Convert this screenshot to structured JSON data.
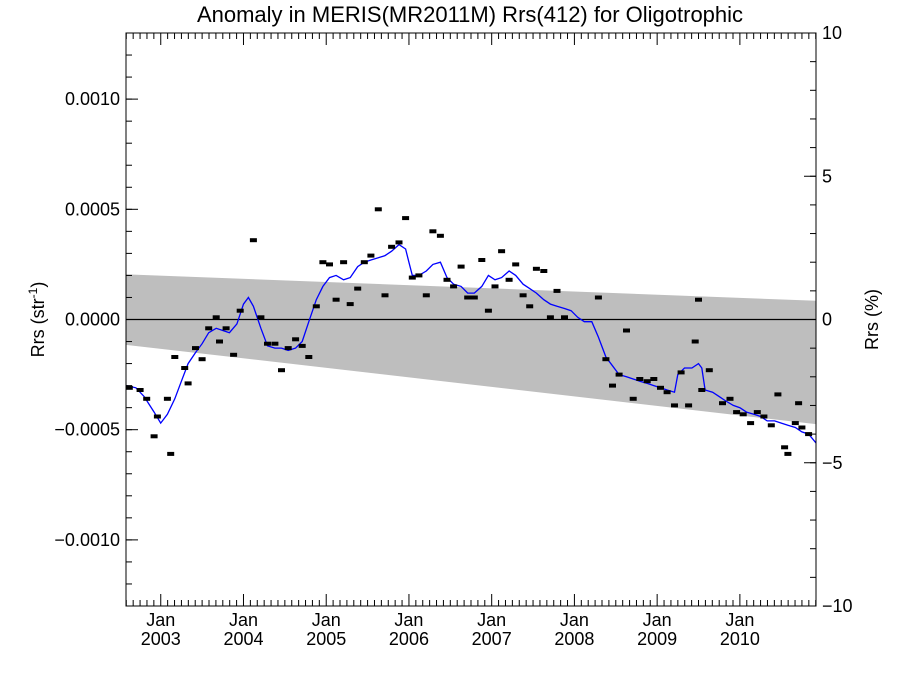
{
  "chart_data": {
    "type": "line",
    "title": "Anomaly in MERIS(MR2011M) Rrs(412) for Oligotrophic",
    "ylabel": "Rrs (str",
    "ylabel_superscript": "-1",
    "ylabel_suffix": ")",
    "y2label": "Rrs (%)",
    "xlim": [
      2002.58,
      2010.92
    ],
    "ylim": [
      -0.0013,
      0.0013
    ],
    "y2lim": [
      -10,
      10
    ],
    "yticks": [
      {
        "value": 0.001,
        "label": "0.0010"
      },
      {
        "value": 0.0005,
        "label": "0.0005"
      },
      {
        "value": 0.0,
        "label": "0.0000"
      },
      {
        "value": -0.0005,
        "label": "−0.0005"
      },
      {
        "value": -0.001,
        "label": "−0.0010"
      }
    ],
    "y2ticks": [
      {
        "value": 10,
        "label": "10"
      },
      {
        "value": 5,
        "label": "5"
      },
      {
        "value": 0,
        "label": "0"
      },
      {
        "value": -5,
        "label": "−5"
      },
      {
        "value": -10,
        "label": "−10"
      }
    ],
    "xticks": [
      {
        "value": 2003.0,
        "month": "Jan",
        "year": "2003"
      },
      {
        "value": 2004.0,
        "month": "Jan",
        "year": "2004"
      },
      {
        "value": 2005.0,
        "month": "Jan",
        "year": "2005"
      },
      {
        "value": 2006.0,
        "month": "Jan",
        "year": "2006"
      },
      {
        "value": 2007.0,
        "month": "Jan",
        "year": "2007"
      },
      {
        "value": 2008.0,
        "month": "Jan",
        "year": "2008"
      },
      {
        "value": 2009.0,
        "month": "Jan",
        "year": "2009"
      },
      {
        "value": 2010.0,
        "month": "Jan",
        "year": "2010"
      }
    ],
    "grid": false,
    "zero_line": true,
    "band": {
      "color": "#bebebe",
      "upper": [
        [
          2002.58,
          0.000205
        ],
        [
          2010.92,
          8.5e-05
        ]
      ],
      "lower": [
        [
          2002.58,
          -0.000115
        ],
        [
          2010.92,
          -0.000475
        ]
      ]
    },
    "series": [
      {
        "type": "scatter-dash",
        "color": "#000000",
        "points": [
          [
            2002.62,
            -0.00031
          ],
          [
            2002.75,
            -0.00032
          ],
          [
            2002.83,
            -0.00036
          ],
          [
            2002.92,
            -0.00053
          ],
          [
            2002.96,
            -0.00044
          ],
          [
            2003.08,
            -0.00036
          ],
          [
            2003.12,
            -0.00061
          ],
          [
            2003.17,
            -0.00017
          ],
          [
            2003.29,
            -0.00022
          ],
          [
            2003.33,
            -0.00029
          ],
          [
            2003.42,
            -0.00013
          ],
          [
            2003.5,
            -0.00018
          ],
          [
            2003.58,
            -4e-05
          ],
          [
            2003.67,
            1e-05
          ],
          [
            2003.71,
            -0.0001
          ],
          [
            2003.79,
            -4e-05
          ],
          [
            2003.88,
            -0.00016
          ],
          [
            2003.96,
            4e-05
          ],
          [
            2004.12,
            0.00036
          ],
          [
            2004.21,
            1e-05
          ],
          [
            2004.29,
            -0.00011
          ],
          [
            2004.38,
            -0.00011
          ],
          [
            2004.46,
            -0.00023
          ],
          [
            2004.54,
            -0.00013
          ],
          [
            2004.63,
            -9e-05
          ],
          [
            2004.71,
            -0.00012
          ],
          [
            2004.79,
            -0.00017
          ],
          [
            2004.88,
            6e-05
          ],
          [
            2004.96,
            0.00026
          ],
          [
            2005.04,
            0.00025
          ],
          [
            2005.12,
            9e-05
          ],
          [
            2005.21,
            0.00026
          ],
          [
            2005.29,
            7e-05
          ],
          [
            2005.38,
            0.00014
          ],
          [
            2005.46,
            0.00026
          ],
          [
            2005.54,
            0.00029
          ],
          [
            2005.63,
            0.0005
          ],
          [
            2005.71,
            0.00011
          ],
          [
            2005.79,
            0.00033
          ],
          [
            2005.88,
            0.00035
          ],
          [
            2005.96,
            0.00046
          ],
          [
            2006.04,
            0.00019
          ],
          [
            2006.12,
            0.0002
          ],
          [
            2006.21,
            0.00011
          ],
          [
            2006.29,
            0.0004
          ],
          [
            2006.38,
            0.00038
          ],
          [
            2006.46,
            0.00018
          ],
          [
            2006.54,
            0.00015
          ],
          [
            2006.63,
            0.00024
          ],
          [
            2006.71,
            0.0001
          ],
          [
            2006.79,
            0.0001
          ],
          [
            2006.88,
            0.00027
          ],
          [
            2006.96,
            4e-05
          ],
          [
            2007.04,
            0.00015
          ],
          [
            2007.12,
            0.00031
          ],
          [
            2007.21,
            0.00018
          ],
          [
            2007.29,
            0.00025
          ],
          [
            2007.38,
            0.00011
          ],
          [
            2007.46,
            6e-05
          ],
          [
            2007.54,
            0.00023
          ],
          [
            2007.63,
            0.00022
          ],
          [
            2007.71,
            1e-05
          ],
          [
            2007.79,
            0.00013
          ],
          [
            2007.88,
            1e-05
          ],
          [
            2008.29,
            0.0001
          ],
          [
            2008.38,
            -0.00018
          ],
          [
            2008.46,
            -0.0003
          ],
          [
            2008.54,
            -0.00025
          ],
          [
            2008.63,
            -5e-05
          ],
          [
            2008.71,
            -0.00036
          ],
          [
            2008.79,
            -0.00027
          ],
          [
            2008.88,
            -0.00028
          ],
          [
            2008.96,
            -0.00027
          ],
          [
            2009.04,
            -0.00031
          ],
          [
            2009.12,
            -0.00033
          ],
          [
            2009.21,
            -0.00039
          ],
          [
            2009.29,
            -0.00024
          ],
          [
            2009.38,
            -0.00039
          ],
          [
            2009.46,
            -0.0001
          ],
          [
            2009.5,
            9e-05
          ],
          [
            2009.54,
            -0.00032
          ],
          [
            2009.63,
            -0.00023
          ],
          [
            2009.79,
            -0.00038
          ],
          [
            2009.88,
            -0.00036
          ],
          [
            2009.96,
            -0.00042
          ],
          [
            2010.04,
            -0.00043
          ],
          [
            2010.13,
            -0.00047
          ],
          [
            2010.21,
            -0.00042
          ],
          [
            2010.29,
            -0.00044
          ],
          [
            2010.38,
            -0.00048
          ],
          [
            2010.46,
            -0.00034
          ],
          [
            2010.54,
            -0.00058
          ],
          [
            2010.58,
            -0.00061
          ],
          [
            2010.67,
            -0.00047
          ],
          [
            2010.71,
            -0.00038
          ],
          [
            2010.75,
            -0.00049
          ],
          [
            2010.83,
            -0.00052
          ]
        ]
      },
      {
        "type": "line",
        "color": "#0000ff",
        "points": [
          [
            2002.58,
            -0.0003
          ],
          [
            2002.7,
            -0.00031
          ],
          [
            2002.8,
            -0.00035
          ],
          [
            2002.92,
            -0.00042
          ],
          [
            2003.0,
            -0.00047
          ],
          [
            2003.08,
            -0.00043
          ],
          [
            2003.17,
            -0.00036
          ],
          [
            2003.25,
            -0.00028
          ],
          [
            2003.33,
            -0.0002
          ],
          [
            2003.42,
            -0.00015
          ],
          [
            2003.5,
            -0.00011
          ],
          [
            2003.58,
            -6e-05
          ],
          [
            2003.67,
            -4e-05
          ],
          [
            2003.75,
            -5e-05
          ],
          [
            2003.83,
            -6e-05
          ],
          [
            2003.92,
            -2e-05
          ],
          [
            2004.0,
            7e-05
          ],
          [
            2004.06,
            0.0001
          ],
          [
            2004.12,
            6e-05
          ],
          [
            2004.21,
            -4e-05
          ],
          [
            2004.29,
            -0.00012
          ],
          [
            2004.38,
            -0.00013
          ],
          [
            2004.46,
            -0.00013
          ],
          [
            2004.54,
            -0.00014
          ],
          [
            2004.63,
            -0.00013
          ],
          [
            2004.71,
            -0.0001
          ],
          [
            2004.79,
            -1e-05
          ],
          [
            2004.88,
            9e-05
          ],
          [
            2004.96,
            0.00015
          ],
          [
            2005.04,
            0.00019
          ],
          [
            2005.12,
            0.0002
          ],
          [
            2005.21,
            0.00018
          ],
          [
            2005.29,
            0.00019
          ],
          [
            2005.38,
            0.00024
          ],
          [
            2005.46,
            0.00026
          ],
          [
            2005.54,
            0.00027
          ],
          [
            2005.63,
            0.00028
          ],
          [
            2005.71,
            0.00029
          ],
          [
            2005.79,
            0.00031
          ],
          [
            2005.88,
            0.00034
          ],
          [
            2005.96,
            0.00032
          ],
          [
            2006.0,
            0.00026
          ],
          [
            2006.04,
            0.0002
          ],
          [
            2006.12,
            0.0002
          ],
          [
            2006.21,
            0.00022
          ],
          [
            2006.29,
            0.00025
          ],
          [
            2006.38,
            0.00026
          ],
          [
            2006.46,
            0.00019
          ],
          [
            2006.54,
            0.00016
          ],
          [
            2006.63,
            0.00015
          ],
          [
            2006.71,
            0.00012
          ],
          [
            2006.79,
            0.00012
          ],
          [
            2006.88,
            0.00015
          ],
          [
            2006.96,
            0.0002
          ],
          [
            2007.04,
            0.00018
          ],
          [
            2007.12,
            0.00019
          ],
          [
            2007.21,
            0.00022
          ],
          [
            2007.29,
            0.0002
          ],
          [
            2007.38,
            0.00016
          ],
          [
            2007.46,
            0.00014
          ],
          [
            2007.54,
            0.00012
          ],
          [
            2007.63,
            9e-05
          ],
          [
            2007.71,
            7e-05
          ],
          [
            2007.79,
            6e-05
          ],
          [
            2007.88,
            5e-05
          ],
          [
            2007.96,
            4e-05
          ],
          [
            2008.04,
            1e-05
          ],
          [
            2008.12,
            -1e-05
          ],
          [
            2008.21,
            -1e-05
          ],
          [
            2008.29,
            -8e-05
          ],
          [
            2008.38,
            -0.00017
          ],
          [
            2008.46,
            -0.00021
          ],
          [
            2008.54,
            -0.00025
          ],
          [
            2008.63,
            -0.00026
          ],
          [
            2008.71,
            -0.00027
          ],
          [
            2008.79,
            -0.00028
          ],
          [
            2008.88,
            -0.00029
          ],
          [
            2008.96,
            -0.0003
          ],
          [
            2009.04,
            -0.00031
          ],
          [
            2009.12,
            -0.00032
          ],
          [
            2009.21,
            -0.00033
          ],
          [
            2009.25,
            -0.00025
          ],
          [
            2009.33,
            -0.00022
          ],
          [
            2009.42,
            -0.00022
          ],
          [
            2009.5,
            -0.0002
          ],
          [
            2009.54,
            -0.00022
          ],
          [
            2009.58,
            -0.00032
          ],
          [
            2009.67,
            -0.00033
          ],
          [
            2009.75,
            -0.00035
          ],
          [
            2009.83,
            -0.00037
          ],
          [
            2009.92,
            -0.00039
          ],
          [
            2010.0,
            -0.0004
          ],
          [
            2010.08,
            -0.00042
          ],
          [
            2010.17,
            -0.00043
          ],
          [
            2010.25,
            -0.00044
          ],
          [
            2010.33,
            -0.00046
          ],
          [
            2010.42,
            -0.00046
          ],
          [
            2010.5,
            -0.00047
          ],
          [
            2010.58,
            -0.00048
          ],
          [
            2010.67,
            -0.00049
          ],
          [
            2010.75,
            -0.00051
          ],
          [
            2010.83,
            -0.00052
          ],
          [
            2010.92,
            -0.00056
          ]
        ]
      }
    ]
  }
}
